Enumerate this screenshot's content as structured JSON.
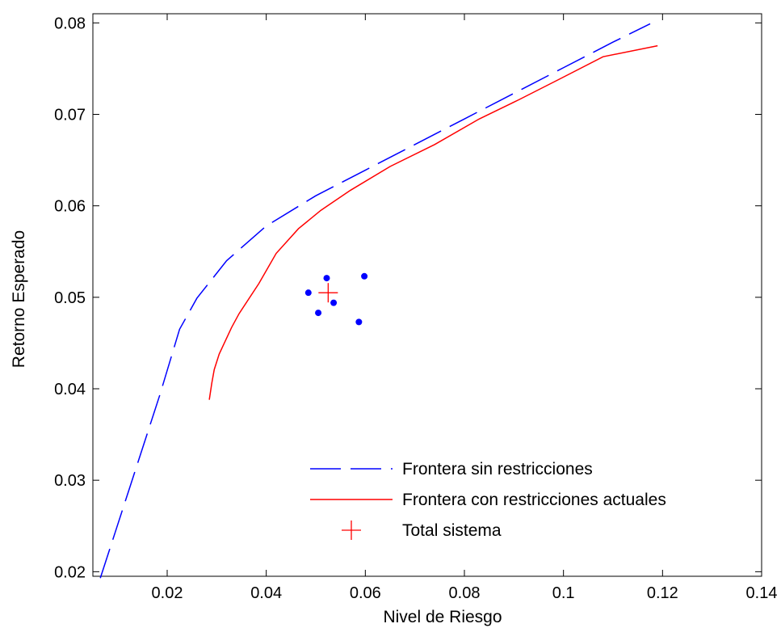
{
  "colors": {
    "unrestricted": "#0000ff",
    "restricted": "#ff0000",
    "total": "#ff0000",
    "points": "#0000ff",
    "axis": "#000000"
  },
  "chart_data": {
    "type": "line",
    "xlabel": "Nivel de Riesgo",
    "ylabel": "Retorno Esperado",
    "xlim": [
      0.005,
      0.14
    ],
    "ylim": [
      0.0195,
      0.081
    ],
    "xticks": [
      0.02,
      0.04,
      0.06,
      0.08,
      0.1,
      0.12,
      0.14
    ],
    "xtick_labels": [
      "0.02",
      "0.04",
      "0.06",
      "0.08",
      "0.1",
      "0.12",
      "0.14"
    ],
    "yticks": [
      0.02,
      0.03,
      0.04,
      0.05,
      0.06,
      0.07,
      0.08
    ],
    "ytick_labels": [
      "0.02",
      "0.03",
      "0.04",
      "0.05",
      "0.06",
      "0.07",
      "0.08"
    ],
    "grid": false,
    "legend_position": "bottom-right",
    "series": [
      {
        "name": "Frontera sin restricciones",
        "style": "dashed",
        "color": "#0000ff",
        "points": [
          [
            0.0065,
            0.0193
          ],
          [
            0.0095,
            0.0243
          ],
          [
            0.0125,
            0.0293
          ],
          [
            0.0155,
            0.0343
          ],
          [
            0.0185,
            0.0393
          ],
          [
            0.0225,
            0.0465
          ],
          [
            0.026,
            0.0499
          ],
          [
            0.032,
            0.054
          ],
          [
            0.04,
            0.0578
          ],
          [
            0.05,
            0.0611
          ],
          [
            0.06,
            0.0639
          ],
          [
            0.07,
            0.0667
          ],
          [
            0.08,
            0.0695
          ],
          [
            0.09,
            0.0723
          ],
          [
            0.1,
            0.0751
          ],
          [
            0.11,
            0.0779
          ],
          [
            0.1175,
            0.0799
          ]
        ]
      },
      {
        "name": "Frontera con restricciones actuales",
        "style": "solid",
        "color": "#ff0000",
        "points": [
          [
            0.0285,
            0.0388
          ],
          [
            0.029,
            0.0406
          ],
          [
            0.0295,
            0.0421
          ],
          [
            0.0305,
            0.0438
          ],
          [
            0.033,
            0.0467
          ],
          [
            0.0345,
            0.0482
          ],
          [
            0.0385,
            0.0515
          ],
          [
            0.042,
            0.0548
          ],
          [
            0.0465,
            0.0575
          ],
          [
            0.051,
            0.0595
          ],
          [
            0.057,
            0.0617
          ],
          [
            0.065,
            0.0643
          ],
          [
            0.074,
            0.0667
          ],
          [
            0.083,
            0.0695
          ],
          [
            0.091,
            0.0716
          ],
          [
            0.099,
            0.0738
          ],
          [
            0.108,
            0.0763
          ],
          [
            0.119,
            0.0775
          ]
        ]
      },
      {
        "name": "Total sistema",
        "style": "marker-plus",
        "color": "#ff0000",
        "points": [
          [
            0.0525,
            0.0505
          ]
        ]
      },
      {
        "style": "marker-dot",
        "color": "#0000ff",
        "points": [
          [
            0.0485,
            0.0505
          ],
          [
            0.0522,
            0.0521
          ],
          [
            0.0598,
            0.0523
          ],
          [
            0.0505,
            0.0483
          ],
          [
            0.0536,
            0.0494
          ],
          [
            0.0587,
            0.0473
          ]
        ]
      }
    ]
  }
}
